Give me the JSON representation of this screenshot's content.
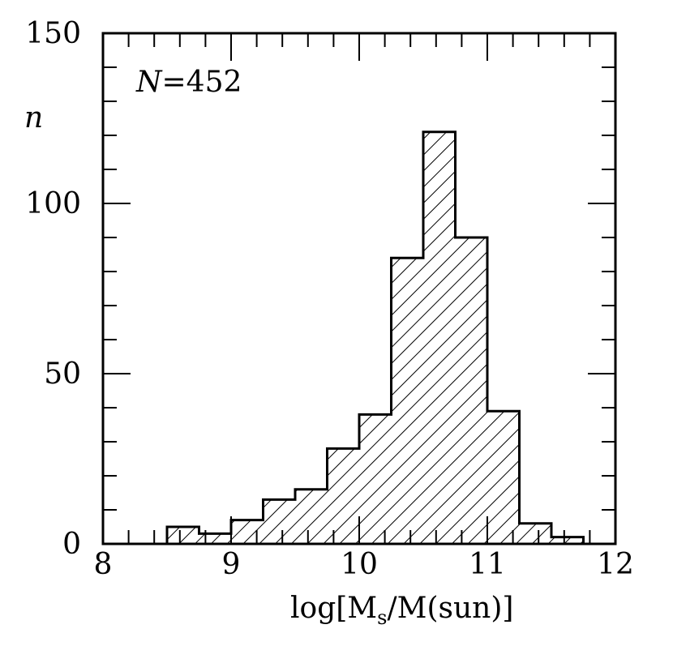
{
  "chart_data": {
    "type": "histogram",
    "bins": [
      {
        "x0": 8.5,
        "x1": 8.75,
        "count": 5
      },
      {
        "x0": 8.75,
        "x1": 9.0,
        "count": 3
      },
      {
        "x0": 9.0,
        "x1": 9.25,
        "count": 7
      },
      {
        "x0": 9.25,
        "x1": 9.5,
        "count": 13
      },
      {
        "x0": 9.5,
        "x1": 9.75,
        "count": 16
      },
      {
        "x0": 9.75,
        "x1": 10.0,
        "count": 28
      },
      {
        "x0": 10.0,
        "x1": 10.25,
        "count": 38
      },
      {
        "x0": 10.25,
        "x1": 10.5,
        "count": 84
      },
      {
        "x0": 10.5,
        "x1": 10.75,
        "count": 121
      },
      {
        "x0": 10.75,
        "x1": 11.0,
        "count": 90
      },
      {
        "x0": 11.0,
        "x1": 11.25,
        "count": 39
      },
      {
        "x0": 11.25,
        "x1": 11.5,
        "count": 6
      },
      {
        "x0": 11.5,
        "x1": 11.75,
        "count": 2
      }
    ],
    "xlim": [
      8,
      12
    ],
    "ylim": [
      0,
      150
    ],
    "xticks": [
      "8",
      "9",
      "10",
      "11",
      "12"
    ],
    "yticks": [
      "0",
      "50",
      "100",
      "150"
    ],
    "xlabel": {
      "pre": "log[M",
      "sub": "s",
      "post": "/M(sun)]"
    },
    "ylabel": "n",
    "annotation": {
      "var": "N",
      "text": "=452"
    },
    "fill": "diagonal hatch",
    "grid": false
  }
}
